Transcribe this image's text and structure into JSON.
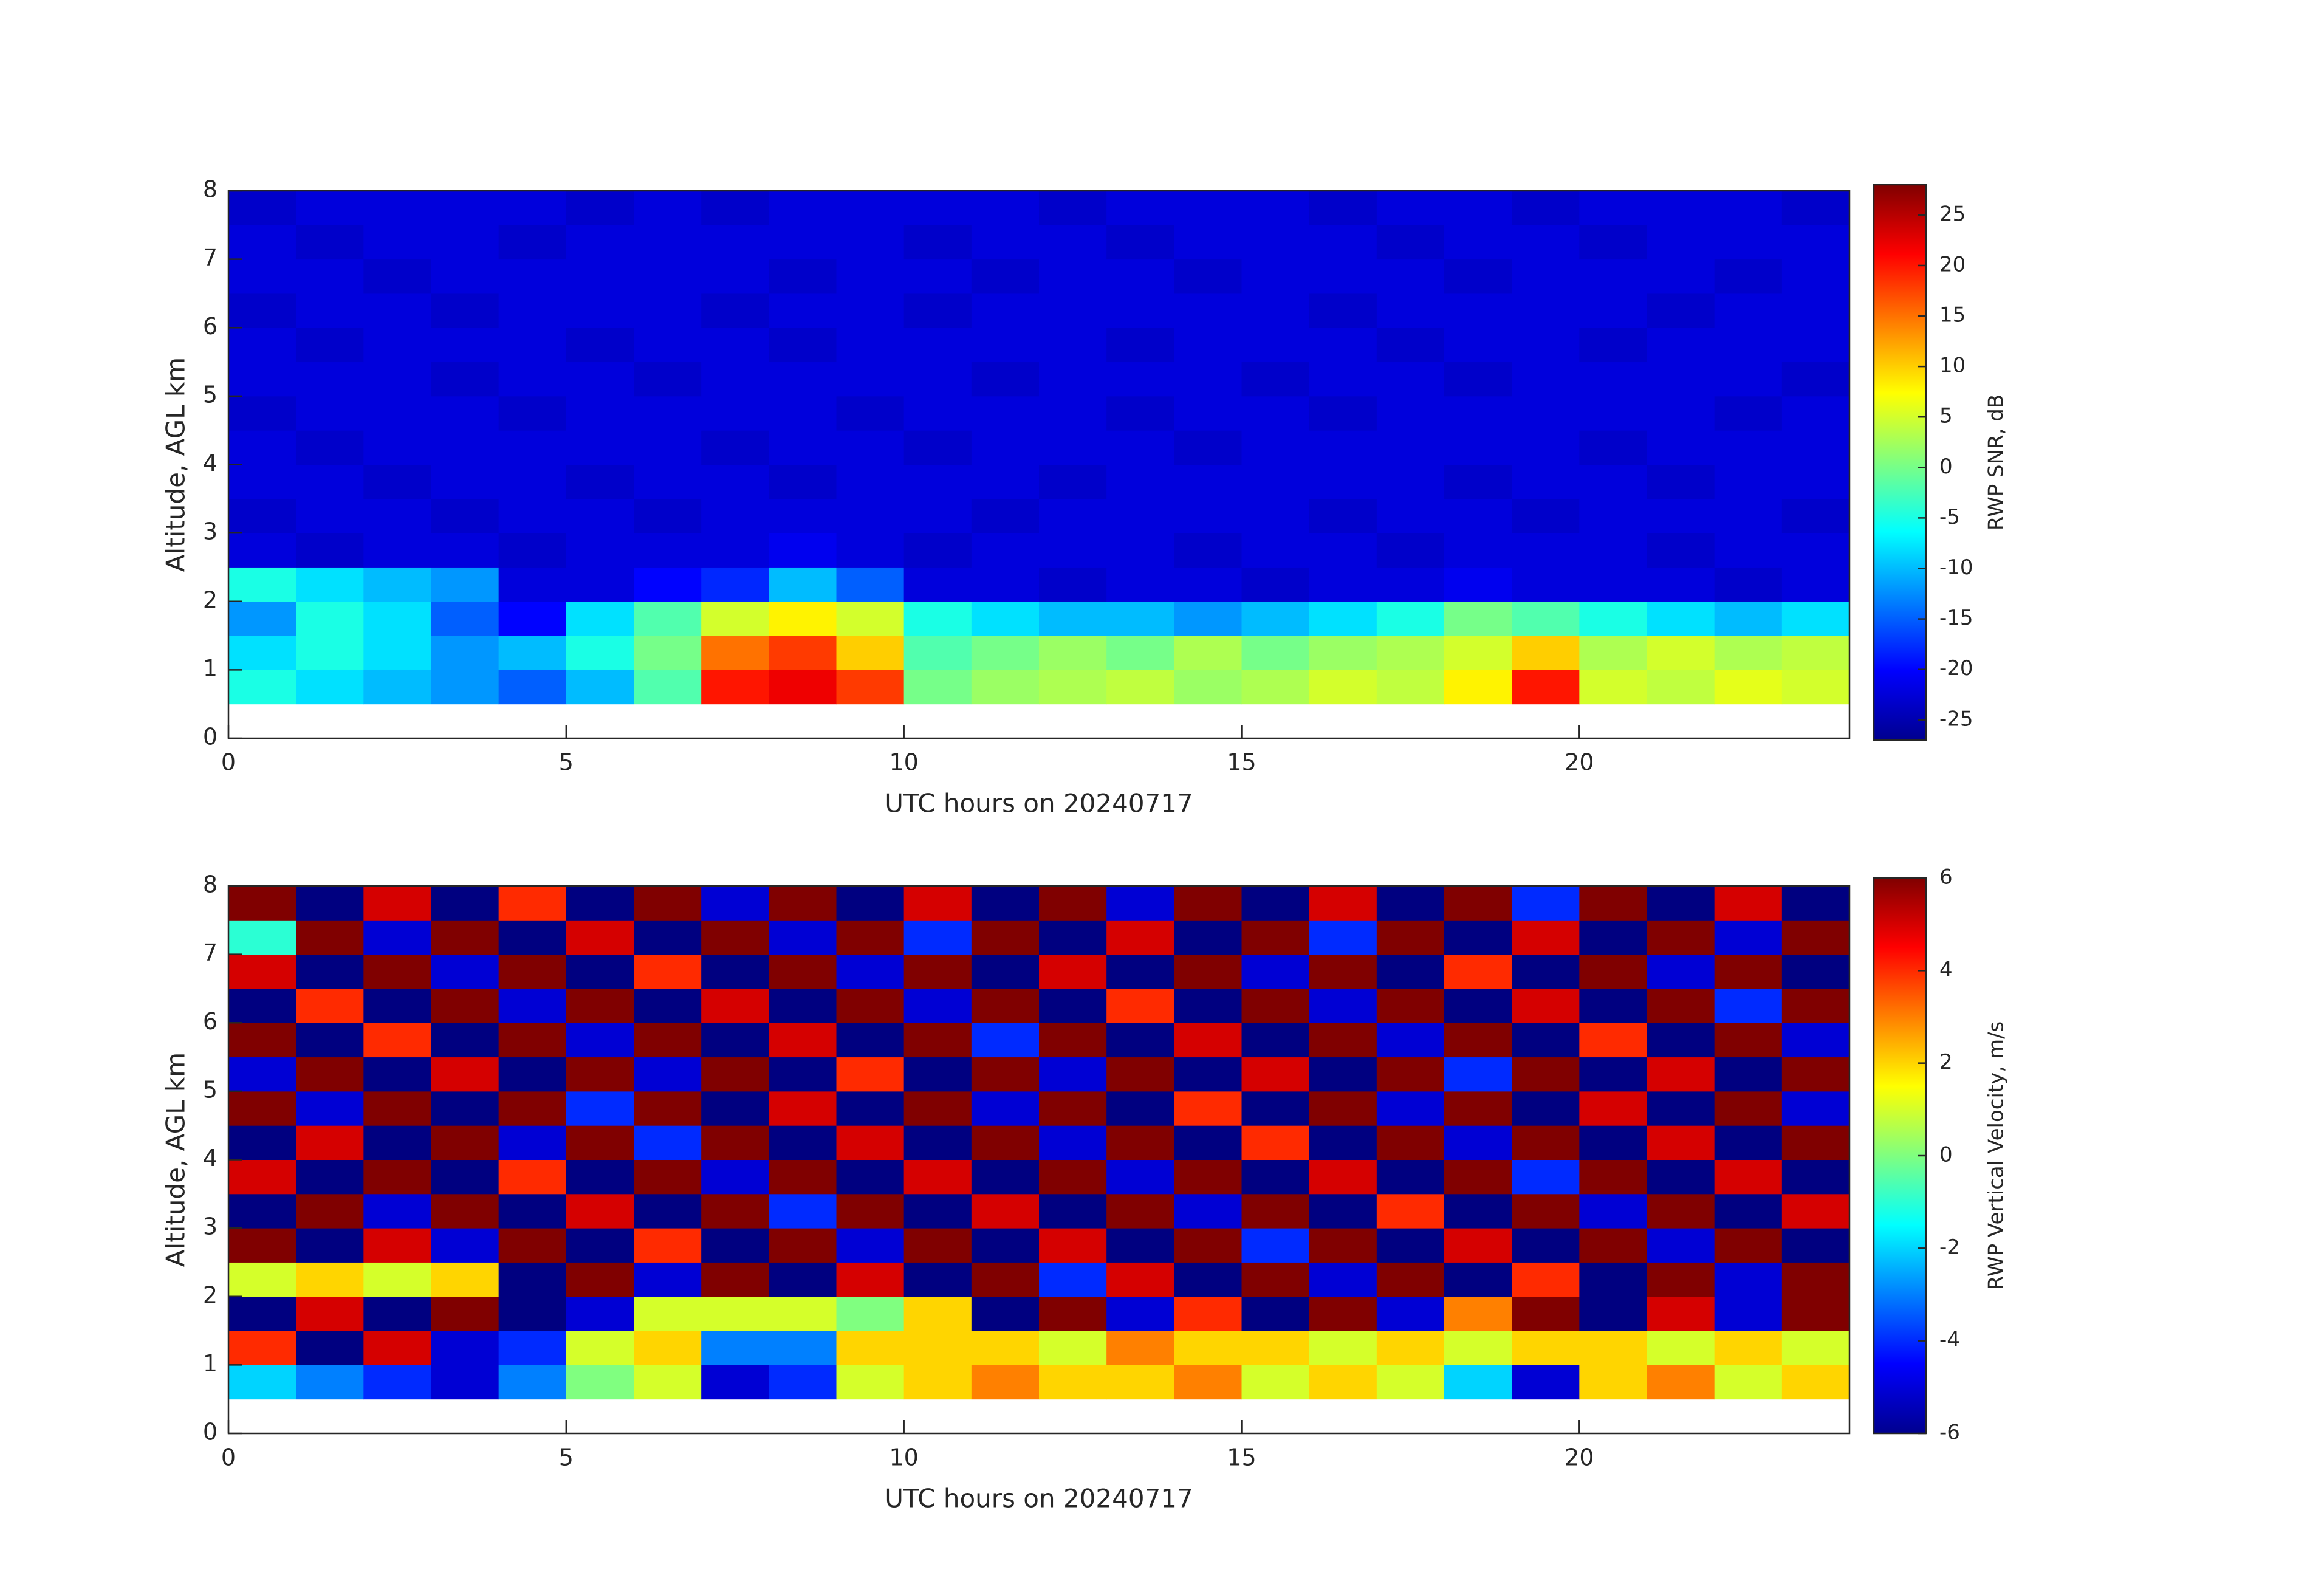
{
  "chart_data": [
    {
      "type": "heatmap",
      "xlabel": "UTC hours on 20240717",
      "ylabel": "Altitude, AGL km",
      "xlim": [
        0,
        24
      ],
      "ylim": [
        0,
        8
      ],
      "xticks": [
        0,
        5,
        10,
        15,
        20
      ],
      "yticks": [
        0,
        1,
        2,
        3,
        4,
        5,
        6,
        7,
        8
      ],
      "x_bins": [
        0,
        1,
        2,
        3,
        4,
        5,
        6,
        7,
        8,
        9,
        10,
        11,
        12,
        13,
        14,
        15,
        16,
        17,
        18,
        19,
        20,
        21,
        22,
        23,
        24
      ],
      "y_bins": [
        0.5,
        1,
        1.5,
        2,
        2.5,
        3,
        3.5,
        4,
        4.5,
        5,
        5.5,
        6,
        6.5,
        7,
        7.5,
        8
      ],
      "colorbar": {
        "label": "RWP SNR, dB",
        "clim": [
          -27,
          28
        ],
        "ticks": [
          -25,
          -20,
          -15,
          -10,
          -5,
          0,
          5,
          10,
          15,
          20,
          25
        ]
      },
      "z": [
        [
          -5,
          -8,
          -10,
          -12,
          -15,
          -10,
          -2,
          20,
          22,
          18,
          0,
          2,
          3,
          4,
          2,
          3,
          5,
          4,
          8,
          20,
          5,
          4,
          6,
          5
        ],
        [
          -8,
          -5,
          -8,
          -12,
          -10,
          -5,
          0,
          15,
          18,
          10,
          -2,
          0,
          2,
          0,
          3,
          0,
          2,
          3,
          5,
          10,
          3,
          5,
          3,
          4
        ],
        [
          -12,
          -5,
          -8,
          -15,
          -20,
          -8,
          -2,
          5,
          8,
          5,
          -5,
          -8,
          -10,
          -10,
          -12,
          -10,
          -8,
          -5,
          0,
          -2,
          -5,
          -8,
          -10,
          -8
        ],
        [
          -5,
          -8,
          -10,
          -12,
          -22,
          -22,
          -20,
          -18,
          -10,
          -15,
          -22,
          -22,
          -23,
          -22,
          -22,
          -23,
          -22,
          -22,
          -21,
          -22,
          -22,
          -22,
          -23,
          -22
        ],
        [
          -22,
          -23,
          -22,
          -22,
          -23,
          -22,
          -22,
          -22,
          -21,
          -22,
          -23,
          -22,
          -22,
          -22,
          -23,
          -22,
          -22,
          -23,
          -22,
          -22,
          -22,
          -23,
          -22,
          -22
        ],
        [
          -23,
          -22,
          -22,
          -23,
          -22,
          -22,
          -23,
          -22,
          -22,
          -22,
          -22,
          -23,
          -22,
          -22,
          -22,
          -22,
          -23,
          -22,
          -22,
          -23,
          -22,
          -22,
          -22,
          -23
        ],
        [
          -22,
          -22,
          -23,
          -22,
          -22,
          -23,
          -22,
          -22,
          -23,
          -22,
          -22,
          -22,
          -23,
          -22,
          -22,
          -22,
          -22,
          -22,
          -23,
          -22,
          -22,
          -23,
          -22,
          -22
        ],
        [
          -22,
          -23,
          -22,
          -22,
          -22,
          -22,
          -22,
          -23,
          -22,
          -22,
          -23,
          -22,
          -22,
          -22,
          -23,
          -22,
          -22,
          -22,
          -22,
          -22,
          -23,
          -22,
          -22,
          -22
        ],
        [
          -23,
          -22,
          -22,
          -22,
          -23,
          -22,
          -22,
          -22,
          -22,
          -23,
          -22,
          -22,
          -22,
          -23,
          -22,
          -22,
          -23,
          -22,
          -22,
          -22,
          -22,
          -22,
          -23,
          -22
        ],
        [
          -22,
          -22,
          -22,
          -23,
          -22,
          -22,
          -23,
          -22,
          -22,
          -22,
          -22,
          -23,
          -22,
          -22,
          -22,
          -23,
          -22,
          -22,
          -23,
          -22,
          -22,
          -22,
          -22,
          -23
        ],
        [
          -22,
          -23,
          -22,
          -22,
          -22,
          -23,
          -22,
          -22,
          -23,
          -22,
          -22,
          -22,
          -22,
          -23,
          -22,
          -22,
          -22,
          -23,
          -22,
          -22,
          -23,
          -22,
          -22,
          -22
        ],
        [
          -23,
          -22,
          -22,
          -23,
          -22,
          -22,
          -22,
          -23,
          -22,
          -22,
          -23,
          -22,
          -22,
          -22,
          -22,
          -22,
          -23,
          -22,
          -22,
          -22,
          -22,
          -23,
          -22,
          -22
        ],
        [
          -22,
          -22,
          -23,
          -22,
          -22,
          -22,
          -22,
          -22,
          -23,
          -22,
          -22,
          -23,
          -22,
          -22,
          -23,
          -22,
          -22,
          -22,
          -23,
          -22,
          -22,
          -22,
          -23,
          -22
        ],
        [
          -22,
          -23,
          -22,
          -22,
          -23,
          -22,
          -22,
          -22,
          -22,
          -22,
          -23,
          -22,
          -22,
          -23,
          -22,
          -22,
          -22,
          -23,
          -22,
          -22,
          -23,
          -22,
          -22,
          -22
        ],
        [
          -23,
          -22,
          -22,
          -22,
          -22,
          -23,
          -22,
          -23,
          -22,
          -22,
          -22,
          -22,
          -23,
          -22,
          -22,
          -22,
          -23,
          -22,
          -22,
          -23,
          -22,
          -22,
          -22,
          -23
        ]
      ]
    },
    {
      "type": "heatmap",
      "xlabel": "UTC hours on 20240717",
      "ylabel": "Altitude, AGL km",
      "xlim": [
        0,
        24
      ],
      "ylim": [
        0,
        8
      ],
      "xticks": [
        0,
        5,
        10,
        15,
        20
      ],
      "yticks": [
        0,
        1,
        2,
        3,
        4,
        5,
        6,
        7,
        8
      ],
      "x_bins": [
        0,
        1,
        2,
        3,
        4,
        5,
        6,
        7,
        8,
        9,
        10,
        11,
        12,
        13,
        14,
        15,
        16,
        17,
        18,
        19,
        20,
        21,
        22,
        23,
        24
      ],
      "y_bins": [
        0.5,
        1,
        1.5,
        2,
        2.5,
        3,
        3.5,
        4,
        4.5,
        5,
        5.5,
        6,
        6.5,
        7,
        7.5,
        8
      ],
      "colorbar": {
        "label": "RWP Vertical Velocity, m/s",
        "clim": [
          -6,
          6
        ],
        "ticks": [
          -6,
          -4,
          -2,
          0,
          2,
          4,
          6
        ]
      },
      "z": [
        [
          -2,
          -3,
          -4,
          -5,
          -3,
          0,
          1,
          -5,
          -4,
          1,
          2,
          3,
          2,
          2,
          3,
          1,
          2,
          1,
          -2,
          -5,
          2,
          3,
          1,
          2
        ],
        [
          4,
          -6,
          5,
          -5,
          -4,
          1,
          2,
          -3,
          -3,
          2,
          2,
          2,
          1,
          3,
          2,
          2,
          1,
          2,
          1,
          2,
          2,
          1,
          2,
          1
        ],
        [
          -6,
          5,
          -6,
          6,
          -6,
          -5,
          1,
          1,
          1,
          0,
          2,
          -6,
          6,
          -5,
          4,
          -6,
          6,
          -5,
          3,
          6,
          -6,
          5,
          -5,
          6
        ],
        [
          1,
          2,
          1,
          2,
          -6,
          6,
          -5,
          6,
          -6,
          5,
          -6,
          6,
          -4,
          5,
          -6,
          6,
          -5,
          6,
          -6,
          4,
          -6,
          6,
          -5,
          6
        ],
        [
          6,
          -6,
          5,
          -5,
          6,
          -6,
          4,
          -6,
          6,
          -5,
          6,
          -6,
          5,
          -6,
          6,
          -4,
          6,
          -6,
          5,
          -6,
          6,
          -5,
          6,
          -6
        ],
        [
          -6,
          6,
          -5,
          6,
          -6,
          5,
          -6,
          6,
          -4,
          6,
          -6,
          5,
          -6,
          6,
          -5,
          6,
          -6,
          4,
          -6,
          6,
          -5,
          6,
          -6,
          5
        ],
        [
          5,
          -6,
          6,
          -6,
          4,
          -6,
          6,
          -5,
          6,
          -6,
          5,
          -6,
          6,
          -5,
          6,
          -6,
          5,
          -6,
          6,
          -4,
          6,
          -6,
          5,
          -6
        ],
        [
          -6,
          5,
          -6,
          6,
          -5,
          6,
          -4,
          6,
          -6,
          5,
          -6,
          6,
          -5,
          6,
          -6,
          4,
          -6,
          6,
          -5,
          6,
          -6,
          5,
          -6,
          6
        ],
        [
          6,
          -5,
          6,
          -6,
          6,
          -4,
          6,
          -6,
          5,
          -6,
          6,
          -5,
          6,
          -6,
          4,
          -6,
          6,
          -5,
          6,
          -6,
          5,
          -6,
          6,
          -5
        ],
        [
          -5,
          6,
          -6,
          5,
          -6,
          6,
          -5,
          6,
          -6,
          4,
          -6,
          6,
          -5,
          6,
          -6,
          5,
          -6,
          6,
          -4,
          6,
          -6,
          5,
          -6,
          6
        ],
        [
          6,
          -6,
          4,
          -6,
          6,
          -5,
          6,
          -6,
          5,
          -6,
          6,
          -4,
          6,
          -6,
          5,
          -6,
          6,
          -5,
          6,
          -6,
          4,
          -6,
          6,
          -5
        ],
        [
          -6,
          4,
          -6,
          6,
          -5,
          6,
          -6,
          5,
          -6,
          6,
          -5,
          6,
          -6,
          4,
          -6,
          6,
          -5,
          6,
          -6,
          5,
          -6,
          6,
          -4,
          6
        ],
        [
          5,
          -6,
          6,
          -5,
          6,
          -6,
          4,
          -6,
          6,
          -5,
          6,
          -6,
          5,
          -6,
          6,
          -5,
          6,
          -6,
          4,
          -6,
          6,
          -5,
          6,
          -6
        ],
        [
          -1,
          6,
          -5,
          6,
          -6,
          5,
          -6,
          6,
          -5,
          6,
          -4,
          6,
          -6,
          5,
          -6,
          6,
          -4,
          6,
          -6,
          5,
          -6,
          6,
          -5,
          6
        ],
        [
          6,
          -6,
          5,
          -6,
          4,
          -6,
          6,
          -5,
          6,
          -6,
          5,
          -6,
          6,
          -5,
          6,
          -6,
          5,
          -6,
          6,
          -4,
          6,
          -6,
          5,
          -6
        ]
      ]
    }
  ]
}
